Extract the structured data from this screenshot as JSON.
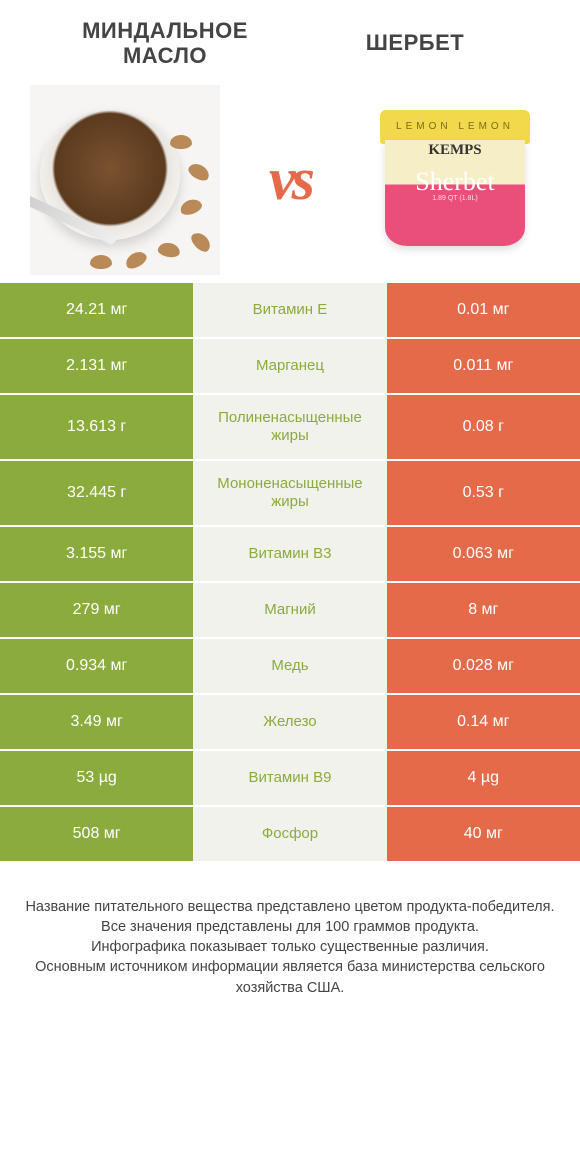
{
  "header": {
    "left_title": "МИНДАЛЬНОЕ МАСЛО",
    "right_title": "ШЕРБЕТ",
    "vs_label": "vs"
  },
  "product_images": {
    "left_alt": "almond-butter-bowl",
    "right_alt": "sherbet-tub",
    "tub_lid_text": "LEMON   LEMON",
    "tub_brand": "KEMPS",
    "tub_script": "Sherbet",
    "tub_sub": "1.89 QT (1.8L)"
  },
  "colors": {
    "left_col": "#8bab3c",
    "right_col": "#e46a4a",
    "mid_col_bg": "#f2f2ed",
    "nutrient_text": "#8bab3c",
    "vs_text": "#e46a4a"
  },
  "rows": [
    {
      "left": "24.21 мг",
      "mid": "Витамин E",
      "right": "0.01 мг",
      "winner": "left",
      "tall": false
    },
    {
      "left": "2.131 мг",
      "mid": "Марганец",
      "right": "0.011 мг",
      "winner": "left",
      "tall": false
    },
    {
      "left": "13.613 г",
      "mid": "Полиненасыщенные жиры",
      "right": "0.08 г",
      "winner": "left",
      "tall": true
    },
    {
      "left": "32.445 г",
      "mid": "Мононенасыщенные жиры",
      "right": "0.53 г",
      "winner": "left",
      "tall": true
    },
    {
      "left": "3.155 мг",
      "mid": "Витамин B3",
      "right": "0.063 мг",
      "winner": "left",
      "tall": false
    },
    {
      "left": "279 мг",
      "mid": "Магний",
      "right": "8 мг",
      "winner": "left",
      "tall": false
    },
    {
      "left": "0.934 мг",
      "mid": "Медь",
      "right": "0.028 мг",
      "winner": "left",
      "tall": false
    },
    {
      "left": "3.49 мг",
      "mid": "Железо",
      "right": "0.14 мг",
      "winner": "left",
      "tall": false
    },
    {
      "left": "53 µg",
      "mid": "Витамин B9",
      "right": "4 µg",
      "winner": "left",
      "tall": false
    },
    {
      "left": "508 мг",
      "mid": "Фосфор",
      "right": "40 мг",
      "winner": "left",
      "tall": false
    }
  ],
  "footnote": {
    "line1": "Название питательного вещества представлено цветом продукта-победителя.",
    "line2": "Все значения представлены для 100 граммов продукта.",
    "line3": "Инфографика показывает только существенные различия.",
    "line4": "Основным источником информации является база министерства сельского хозяйства США."
  }
}
